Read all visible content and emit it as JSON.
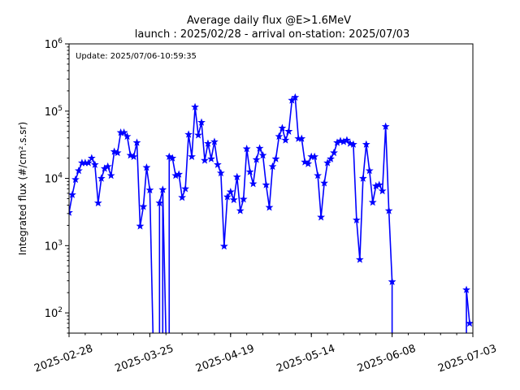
{
  "chart_data": {
    "type": "line",
    "title": "Average daily flux @E>1.6MeV",
    "subtitle": "launch : 2025/02/28 - arrival on-station: 2025/07/03",
    "update_text": "Update: 2025/07/06-10:59:35",
    "ylabel": "Integrated flux (#/cm².s.sr)",
    "xlabel": "",
    "yscale": "log",
    "ylim": [
      50,
      1000000
    ],
    "xlim": [
      "2025-02-28",
      "2025-07-03"
    ],
    "grid": false,
    "color": "#0000ff",
    "marker": "star",
    "x_ticks": [
      "2025-02-28",
      "2025-03-25",
      "2025-04-19",
      "2025-05-14",
      "2025-06-08",
      "2025-07-03"
    ],
    "y_ticks": [
      {
        "value": 100,
        "base": "10",
        "exp": "2"
      },
      {
        "value": 1000,
        "base": "10",
        "exp": "3"
      },
      {
        "value": 10000,
        "base": "10",
        "exp": "4"
      },
      {
        "value": 100000,
        "base": "10",
        "exp": "5"
      },
      {
        "value": 1000000,
        "base": "10",
        "exp": "6"
      }
    ],
    "series": [
      {
        "x": [
          "2025-02-28",
          "2025-03-01",
          "2025-03-02",
          "2025-03-03",
          "2025-03-04",
          "2025-03-05",
          "2025-03-06",
          "2025-03-07",
          "2025-03-08",
          "2025-03-09",
          "2025-03-10",
          "2025-03-11",
          "2025-03-12",
          "2025-03-13",
          "2025-03-14",
          "2025-03-15",
          "2025-03-16",
          "2025-03-17",
          "2025-03-18",
          "2025-03-19",
          "2025-03-20",
          "2025-03-21",
          "2025-03-22",
          "2025-03-23",
          "2025-03-24",
          "2025-03-25",
          "2025-03-26",
          "2025-03-27",
          "2025-03-28",
          "2025-03-29",
          "2025-03-30",
          "2025-03-31",
          "2025-04-01",
          "2025-04-02",
          "2025-04-03",
          "2025-04-04",
          "2025-04-05",
          "2025-04-06",
          "2025-04-07",
          "2025-04-08",
          "2025-04-09",
          "2025-04-10",
          "2025-04-11",
          "2025-04-12",
          "2025-04-13",
          "2025-04-14",
          "2025-04-15",
          "2025-04-16",
          "2025-04-17",
          "2025-04-18",
          "2025-04-19",
          "2025-04-20",
          "2025-04-21",
          "2025-04-22",
          "2025-04-23",
          "2025-04-24",
          "2025-04-25",
          "2025-04-26",
          "2025-04-27",
          "2025-04-28",
          "2025-04-29",
          "2025-04-30",
          "2025-05-01",
          "2025-05-02",
          "2025-05-03",
          "2025-05-04",
          "2025-05-05",
          "2025-05-06",
          "2025-05-07",
          "2025-05-08",
          "2025-05-09",
          "2025-05-10",
          "2025-05-11",
          "2025-05-12",
          "2025-05-13",
          "2025-05-14",
          "2025-05-15",
          "2025-05-16",
          "2025-05-17",
          "2025-05-18",
          "2025-05-19",
          "2025-05-20",
          "2025-05-21",
          "2025-05-22",
          "2025-05-23",
          "2025-05-24",
          "2025-05-25",
          "2025-05-26",
          "2025-05-27",
          "2025-05-28",
          "2025-05-29",
          "2025-05-30",
          "2025-05-31",
          "2025-06-01",
          "2025-06-02",
          "2025-06-03",
          "2025-06-04",
          "2025-06-05",
          "2025-06-06",
          "2025-06-07",
          "2025-06-08",
          "2025-06-09",
          "2025-06-10",
          "2025-06-11",
          "2025-06-12",
          "2025-06-13",
          "2025-06-14",
          "2025-06-15",
          "2025-06-16",
          "2025-06-17",
          "2025-06-18",
          "2025-06-19",
          "2025-06-20",
          "2025-06-21",
          "2025-06-22",
          "2025-06-23",
          "2025-06-24",
          "2025-06-25",
          "2025-06-26",
          "2025-06-27",
          "2025-06-28",
          "2025-06-29",
          "2025-06-30",
          "2025-07-01",
          "2025-07-02"
        ],
        "y": [
          3100,
          5700,
          9600,
          13000,
          17000,
          17000,
          17000,
          20000,
          16000,
          4300,
          10000,
          14000,
          15000,
          11000,
          25000,
          24000,
          48000,
          48000,
          42000,
          22000,
          21000,
          34000,
          1950,
          3800,
          14500,
          6700,
          null,
          null,
          4300,
          6800,
          null,
          21000,
          20000,
          11000,
          11500,
          5200,
          7000,
          45000,
          21000,
          115000,
          44000,
          68000,
          18500,
          33000,
          19500,
          35000,
          16000,
          12000,
          980,
          5300,
          6300,
          4800,
          10500,
          3300,
          4900,
          27500,
          12500,
          8300,
          19000,
          28000,
          22000,
          8000,
          3700,
          15000,
          19500,
          42000,
          56000,
          37000,
          50000,
          145000,
          160000,
          39000,
          39000,
          17500,
          16500,
          21000,
          21000,
          11000,
          2650,
          8500,
          17000,
          19500,
          24000,
          34000,
          36000,
          35000,
          37000,
          33000,
          32000,
          2400,
          620,
          10000,
          32000,
          13000,
          4400,
          7700,
          8000,
          6500,
          59000,
          3300,
          290,
          null,
          null,
          null,
          null,
          null,
          null,
          null,
          null,
          null,
          null,
          null,
          null,
          null,
          null,
          null,
          null,
          null,
          null,
          null,
          null,
          null,
          null,
          220,
          70
        ],
        "drops_below_axis": [
          "2025-03-26",
          "2025-03-28",
          "2025-03-29",
          "2025-03-30",
          "2025-03-31",
          "2025-06-08",
          "2025-07-01"
        ]
      }
    ]
  }
}
